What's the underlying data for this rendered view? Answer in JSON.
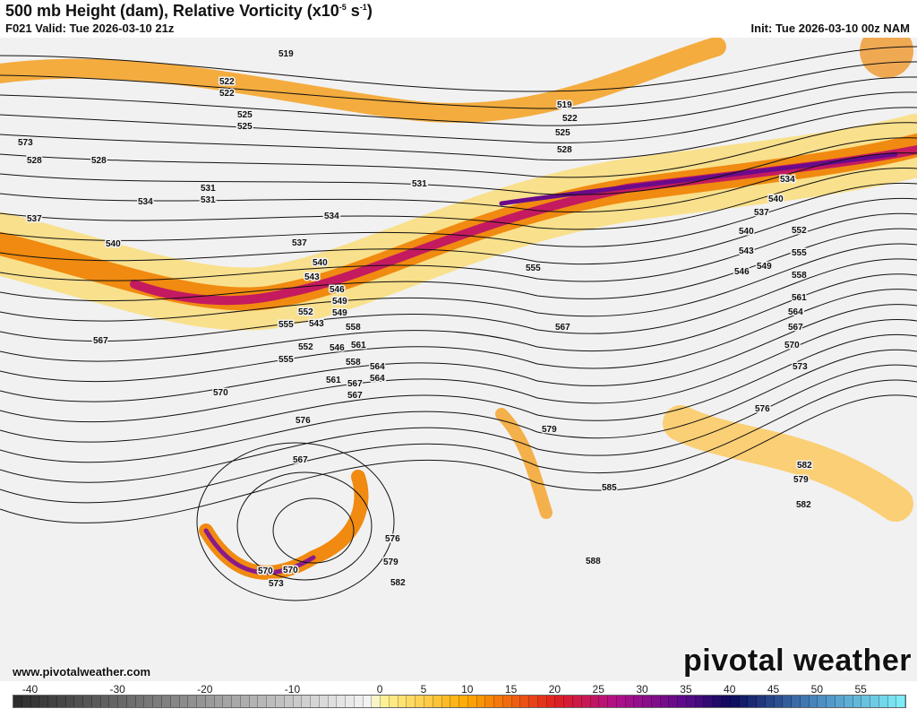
{
  "header": {
    "title": "500 mb Height (dam), Relative Vorticity (x10",
    "title_exp1": "-5",
    "title_unit": " s",
    "title_exp2": "-1",
    "title_close": ")",
    "valid": "F021 Valid: Tue 2026-03-10 21z",
    "init": "Init: Tue 2026-03-10 00z NAM"
  },
  "footer": {
    "website": "www.pivotalweather.com",
    "logo": "pivotal weather"
  },
  "map": {
    "contour_labels": [
      "519",
      "522",
      "525",
      "528",
      "531",
      "534",
      "537",
      "540",
      "543",
      "546",
      "549",
      "552",
      "555",
      "558",
      "561",
      "564",
      "567",
      "570",
      "573",
      "576",
      "579",
      "582",
      "585",
      "588",
      "519",
      "522",
      "525",
      "528",
      "531",
      "534",
      "537",
      "540",
      "543",
      "546",
      "549",
      "552",
      "555",
      "558",
      "561",
      "564",
      "567",
      "570",
      "573",
      "576",
      "579",
      "582",
      "522",
      "525",
      "528",
      "531",
      "534",
      "540",
      "537",
      "540",
      "543",
      "546",
      "549",
      "552",
      "555",
      "558",
      "561",
      "564",
      "567",
      "567",
      "570",
      "567",
      "570",
      "573",
      "576",
      "579",
      "582",
      "555",
      "567"
    ],
    "colors": {
      "background": "#f2f2f2",
      "contour": "#111111",
      "jet_core": "#6a0a8a",
      "jet_edge": "#f08a10",
      "positive_low": "#ffd54a"
    }
  },
  "colorbar": {
    "ticks": [
      "-40",
      "-30",
      "-20",
      "-10",
      "0",
      "5",
      "10",
      "15",
      "20",
      "25",
      "30",
      "35",
      "40",
      "45",
      "50",
      "55"
    ],
    "min": -42,
    "max": 60
  }
}
